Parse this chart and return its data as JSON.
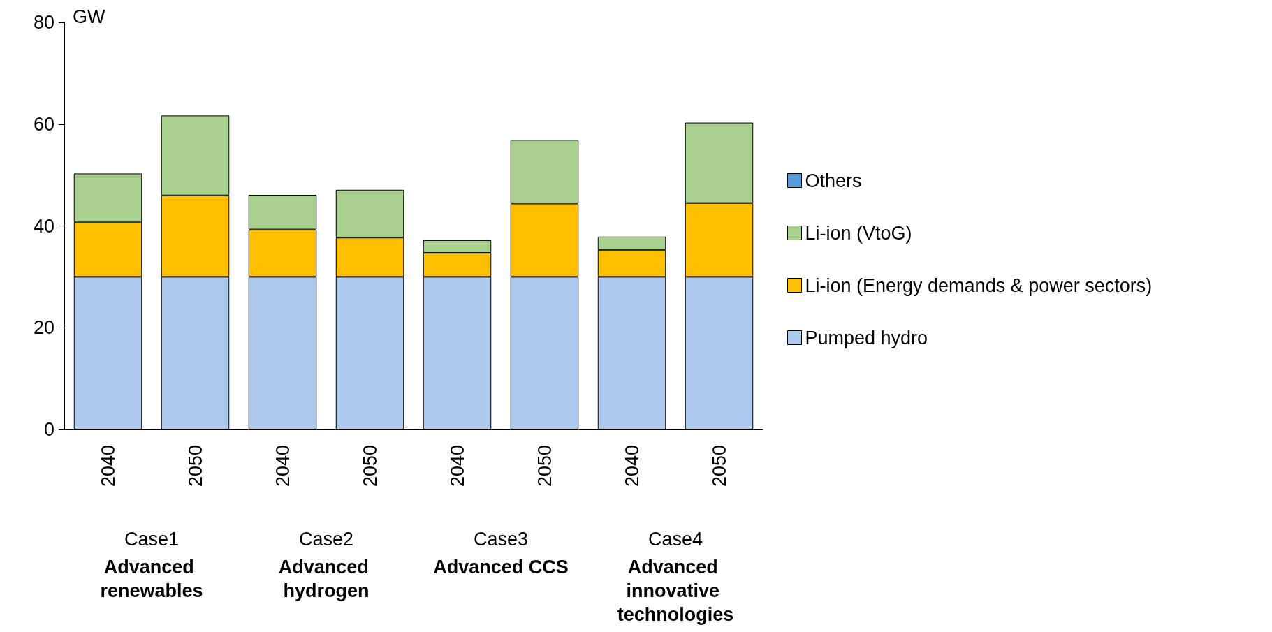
{
  "chart_data": {
    "type": "bar",
    "stacked": true,
    "ylabel": "GW",
    "categories": [
      "2040",
      "2050",
      "2040",
      "2050",
      "2040",
      "2050",
      "2040",
      "2050"
    ],
    "series": [
      {
        "name": "Pumped hydro",
        "color": "#adc9ee",
        "values": [
          30,
          30,
          30,
          30,
          30,
          30,
          30,
          30
        ]
      },
      {
        "name": "Li-ion (Energy demands & power sectors)",
        "color": "#ffc000",
        "values": [
          10.7,
          16,
          9.3,
          7.7,
          4.7,
          14.4,
          5.3,
          14.5
        ]
      },
      {
        "name": "Li-ion (VtoG)",
        "color": "#a9d08e",
        "values": [
          9.6,
          15.7,
          6.8,
          9.4,
          2.5,
          12.5,
          2.6,
          15.8
        ]
      },
      {
        "name": "Others",
        "color": "#5b9bd5",
        "values": [
          null,
          null,
          null,
          null,
          null,
          null,
          null,
          null
        ]
      }
    ],
    "ylim": [
      0,
      80
    ],
    "yticks": [
      0,
      20,
      40,
      60,
      80
    ],
    "grid": false,
    "legend": "right",
    "annotations": [
      "Case1",
      "Advanced renewables",
      "Case2",
      "Advanced hydrogen",
      "Case3",
      "Advanced CCS",
      "Case4",
      "Advanced innovative technologies"
    ]
  }
}
